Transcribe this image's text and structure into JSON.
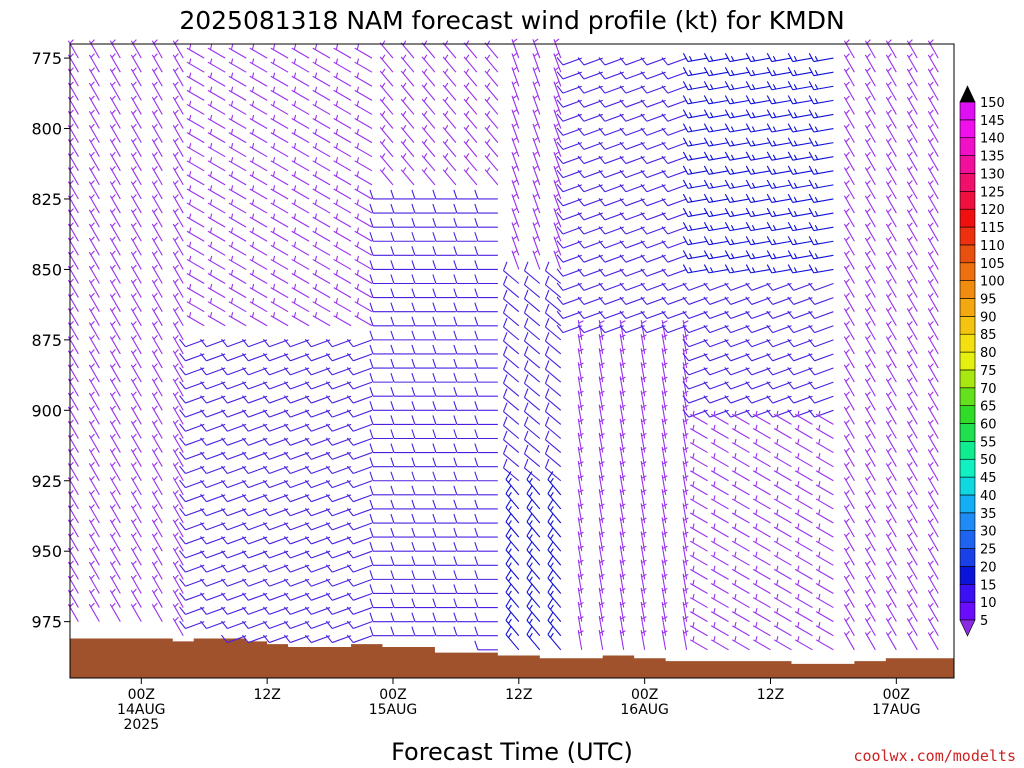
{
  "chart_data": {
    "type": "wind-barb-time-height",
    "title": "2025081318 NAM forecast wind profile (kt) for KMDN",
    "xlabel": "Forecast Time (UTC)",
    "credit": "coolwx.com/modelts",
    "y_axis": {
      "unit": "hPa",
      "inverted": true,
      "range": [
        770,
        995
      ],
      "ticks": [
        775,
        800,
        825,
        850,
        875,
        900,
        925,
        950,
        975
      ]
    },
    "x_axis": {
      "unit": "forecast hour",
      "range": [
        -6.8,
        77.5
      ],
      "ticks": [
        {
          "hour": 0,
          "lines": [
            "00Z",
            "14AUG",
            "2025"
          ]
        },
        {
          "hour": 12,
          "lines": [
            "12Z"
          ]
        },
        {
          "hour": 24,
          "lines": [
            "00Z",
            "15AUG"
          ]
        },
        {
          "hour": 36,
          "lines": [
            "12Z"
          ]
        },
        {
          "hour": 48,
          "lines": [
            "00Z",
            "16AUG"
          ]
        },
        {
          "hour": 60,
          "lines": [
            "12Z"
          ]
        },
        {
          "hour": 72,
          "lines": [
            "00Z",
            "17AUG"
          ]
        }
      ]
    },
    "colorbar": {
      "label_unit": "kt",
      "levels": [
        5,
        10,
        15,
        20,
        25,
        30,
        35,
        40,
        45,
        50,
        55,
        60,
        65,
        70,
        75,
        80,
        85,
        90,
        95,
        100,
        105,
        110,
        115,
        120,
        125,
        130,
        135,
        140,
        145,
        150
      ],
      "colors": [
        "#8a2be2",
        "#6a0dfc",
        "#3c10f4",
        "#0a14d8",
        "#1a40e8",
        "#1e64f0",
        "#1e8cf4",
        "#14aef4",
        "#10d8e0",
        "#10f0c0",
        "#10ec90",
        "#20e050",
        "#30dc28",
        "#64e01c",
        "#a8e810",
        "#e4f010",
        "#f4e010",
        "#f4c410",
        "#f4a810",
        "#f08c10",
        "#ec7010",
        "#e85010",
        "#ec3010",
        "#f01010",
        "#f01040",
        "#f0106c",
        "#f0109c",
        "#f010c8",
        "#f010ec",
        "#e010f4"
      ]
    },
    "colors": {
      "terrain": "#a0522d",
      "barb_light": "#9a30ee",
      "barb_moderate": "#4a20e0",
      "barb_strong": "#1010d8"
    },
    "terrain_surface_pressure": [
      {
        "hour": -6.8,
        "p": 981
      },
      {
        "hour": 1,
        "p": 981
      },
      {
        "hour": 3,
        "p": 982
      },
      {
        "hour": 5,
        "p": 981
      },
      {
        "hour": 10,
        "p": 982
      },
      {
        "hour": 12,
        "p": 983
      },
      {
        "hour": 14,
        "p": 984
      },
      {
        "hour": 20,
        "p": 983
      },
      {
        "hour": 23,
        "p": 984
      },
      {
        "hour": 28,
        "p": 986
      },
      {
        "hour": 34,
        "p": 987
      },
      {
        "hour": 38,
        "p": 988
      },
      {
        "hour": 44,
        "p": 987
      },
      {
        "hour": 47,
        "p": 988
      },
      {
        "hour": 50,
        "p": 989
      },
      {
        "hour": 58,
        "p": 989
      },
      {
        "hour": 62,
        "p": 990
      },
      {
        "hour": 68,
        "p": 989
      },
      {
        "hour": 71,
        "p": 988
      },
      {
        "hour": 77.5,
        "p": 988
      }
    ],
    "barb_levels_hpa": [
      775,
      780,
      785,
      790,
      795,
      800,
      805,
      810,
      815,
      820,
      825,
      830,
      835,
      840,
      845,
      850,
      855,
      860,
      865,
      870,
      875,
      880,
      885,
      890,
      895,
      900,
      905,
      910,
      915,
      920,
      925,
      930,
      935,
      940,
      945,
      950,
      955,
      960,
      965,
      970,
      975,
      980,
      985
    ],
    "wind_profile": [
      {
        "from_hour": -6,
        "to_hour": 4,
        "layers": [
          {
            "from_p": 775,
            "to_p": 985,
            "dir_deg": 330,
            "speed_kt": 5
          }
        ]
      },
      {
        "from_hour": 5,
        "to_hour": 22,
        "layers": [
          {
            "from_p": 775,
            "to_p": 870,
            "dir_deg": 300,
            "speed_kt": 5
          },
          {
            "from_p": 875,
            "to_p": 985,
            "dir_deg": 250,
            "speed_kt": 10
          }
        ]
      },
      {
        "from_hour": 23,
        "to_hour": 34,
        "layers": [
          {
            "from_p": 775,
            "to_p": 820,
            "dir_deg": 320,
            "speed_kt": 5
          },
          {
            "from_p": 825,
            "to_p": 985,
            "dir_deg": 270,
            "speed_kt": 10
          }
        ]
      },
      {
        "from_hour": 35,
        "to_hour": 40,
        "layers": [
          {
            "from_p": 775,
            "to_p": 850,
            "dir_deg": 340,
            "speed_kt": 5
          },
          {
            "from_p": 855,
            "to_p": 925,
            "dir_deg": 310,
            "speed_kt": 10
          },
          {
            "from_p": 930,
            "to_p": 985,
            "dir_deg": 320,
            "speed_kt": 15
          }
        ]
      },
      {
        "from_hour": 41,
        "to_hour": 52,
        "layers": [
          {
            "from_p": 775,
            "to_p": 870,
            "dir_deg": 250,
            "speed_kt": 10
          },
          {
            "from_p": 875,
            "to_p": 985,
            "dir_deg": 350,
            "speed_kt": 5
          }
        ]
      },
      {
        "from_hour": 53,
        "to_hour": 66,
        "layers": [
          {
            "from_p": 775,
            "to_p": 850,
            "dir_deg": 260,
            "speed_kt": 15
          },
          {
            "from_p": 855,
            "to_p": 900,
            "dir_deg": 250,
            "speed_kt": 10
          },
          {
            "from_p": 905,
            "to_p": 985,
            "dir_deg": 300,
            "speed_kt": 5
          }
        ]
      },
      {
        "from_hour": 67,
        "to_hour": 77,
        "layers": [
          {
            "from_p": 775,
            "to_p": 985,
            "dir_deg": 330,
            "speed_kt": 5
          }
        ]
      }
    ]
  }
}
